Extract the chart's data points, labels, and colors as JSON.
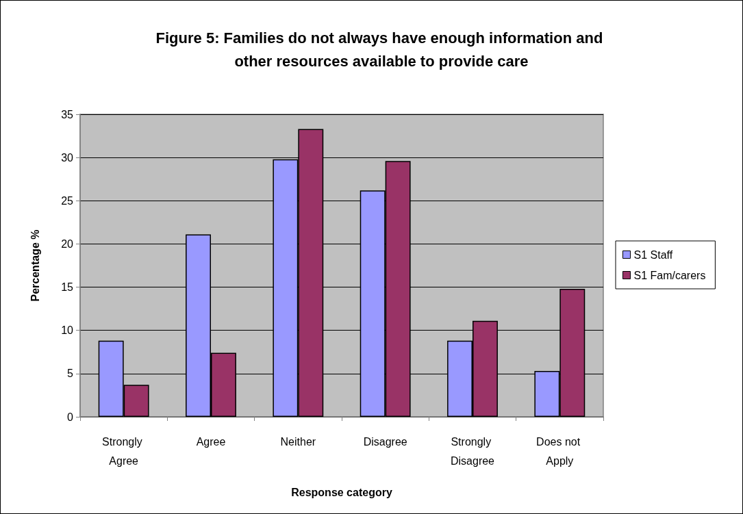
{
  "chart_data": {
    "type": "bar",
    "title": "Figure 5: Families do not always have enough information and other resources available to provide care",
    "xlabel": "Response category",
    "ylabel": "Percentage %",
    "categories": [
      "Strongly Agree",
      "Agree",
      "Neither",
      "Disagree",
      "Strongly Disagree",
      "Does not Apply"
    ],
    "series": [
      {
        "name": "S1 Staff",
        "color": "#9999ff",
        "values": [
          8.8,
          21.1,
          29.8,
          26.2,
          8.8,
          5.3
        ]
      },
      {
        "name": "S1 Fam/carers",
        "color": "#993366",
        "values": [
          3.7,
          7.4,
          33.3,
          29.6,
          11.1,
          14.8
        ]
      }
    ],
    "ylim": [
      0,
      35
    ],
    "yticks": [
      0,
      5,
      10,
      15,
      20,
      25,
      30,
      35
    ],
    "grid": "y",
    "legend": "right"
  }
}
